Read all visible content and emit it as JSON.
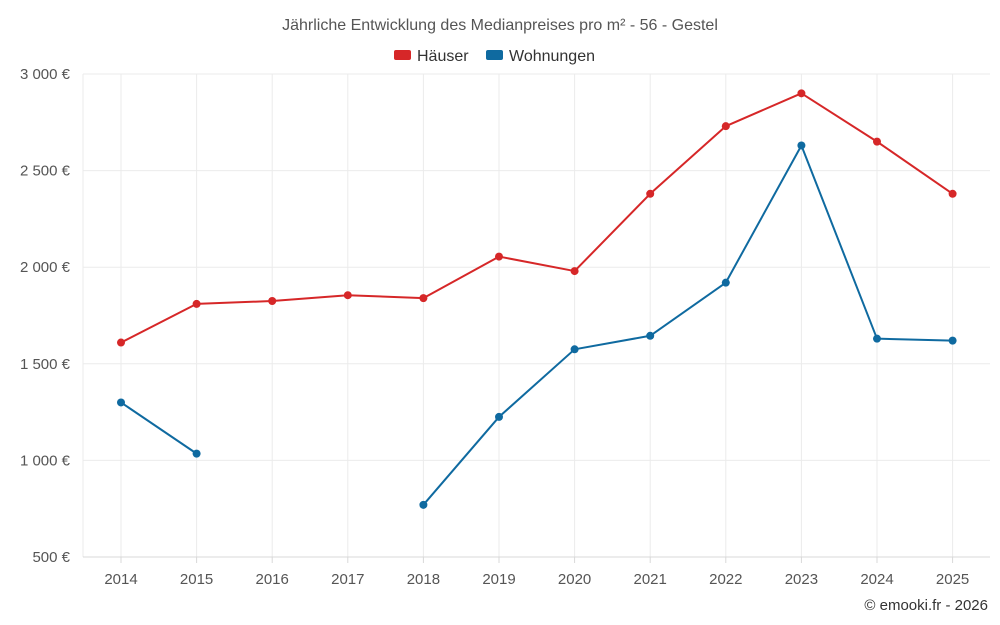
{
  "chart_data": {
    "type": "line",
    "title": "Jährliche Entwicklung des Medianpreises pro m² - 56 - Gestel",
    "xlabel": "",
    "ylabel": "",
    "categories": [
      "2014",
      "2015",
      "2016",
      "2017",
      "2018",
      "2019",
      "2020",
      "2021",
      "2022",
      "2023",
      "2024",
      "2025"
    ],
    "ylim": [
      500,
      3000
    ],
    "yticks": [
      500,
      1000,
      1500,
      2000,
      2500,
      3000
    ],
    "ytick_labels": [
      "500 €",
      "1 000 €",
      "1 500 €",
      "2 000 €",
      "2 500 €",
      "3 000 €"
    ],
    "grid": true,
    "legend_position": "top-center",
    "series": [
      {
        "name": "Häuser",
        "color": "#d62728",
        "values": [
          1610,
          1810,
          1825,
          1855,
          1840,
          2055,
          1980,
          2380,
          2730,
          2900,
          2650,
          2380
        ]
      },
      {
        "name": "Wohnungen",
        "color": "#0f6aa0",
        "values": [
          1300,
          1035,
          null,
          null,
          770,
          1225,
          1575,
          1645,
          1920,
          2630,
          1630,
          1620
        ]
      }
    ]
  },
  "credit": "© emooki.fr - 2026"
}
